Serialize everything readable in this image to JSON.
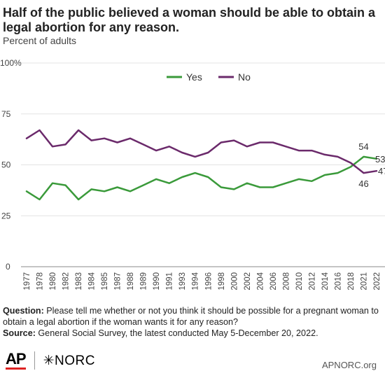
{
  "title": "Half of the public believed a woman should be able to obtain a legal abortion for any reason.",
  "subtitle": "Percent of adults",
  "chart_data": {
    "type": "line",
    "x": [
      "1977",
      "1978",
      "1980",
      "1982",
      "1983",
      "1984",
      "1985",
      "1987",
      "1988",
      "1989",
      "1990",
      "1991",
      "1993",
      "1994",
      "1996",
      "1998",
      "2000",
      "2002",
      "2004",
      "2006",
      "2008",
      "2010",
      "2012",
      "2014",
      "2016",
      "2018",
      "2021",
      "2022"
    ],
    "series": [
      {
        "name": "Yes",
        "color": "#3a9a3a",
        "values": [
          37,
          33,
          41,
          40,
          33,
          38,
          37,
          39,
          37,
          40,
          43,
          41,
          44,
          46,
          44,
          39,
          38,
          41,
          39,
          39,
          41,
          43,
          42,
          45,
          46,
          49,
          54,
          53
        ]
      },
      {
        "name": "No",
        "color": "#6b2a6b",
        "values": [
          63,
          67,
          59,
          60,
          67,
          62,
          63,
          61,
          63,
          60,
          57,
          59,
          56,
          54,
          56,
          61,
          62,
          59,
          61,
          61,
          59,
          57,
          57,
          55,
          54,
          51,
          46,
          47
        ]
      }
    ],
    "yticks": [
      "0",
      "25",
      "50",
      "75",
      "100%"
    ],
    "ylim": [
      0,
      100
    ],
    "legend_position": "top",
    "data_labels": {
      "yes_2021": "54",
      "yes_2022": "53",
      "no_2021": "46",
      "no_2022": "47"
    }
  },
  "footnote": {
    "question_label": "Question:",
    "question_text": " Please tell me whether or not you think it should be possible for a pregnant woman to obtain a legal abortion if the woman wants it for any reason?",
    "source_label": "Source:",
    "source_text": " General Social Survey, the latest conducted May 5-December 20, 2022."
  },
  "logos": {
    "ap": "AP",
    "norc": "✳NORC"
  },
  "site": "APNORC.org"
}
